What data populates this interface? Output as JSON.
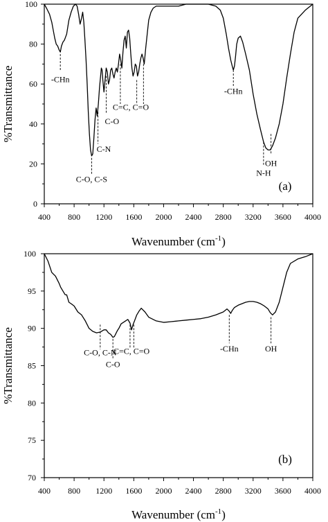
{
  "chart_data": [
    {
      "type": "line",
      "panel_label": "(a)",
      "xlabel_main": "Wavenumber (cm",
      "xlabel_sup": "-1",
      "xlabel_tail": ")",
      "ylabel": "%Transmittance",
      "xlim": [
        400,
        4000
      ],
      "ylim": [
        0,
        100
      ],
      "xticks": [
        "400",
        "800",
        "1200",
        "1600",
        "2000",
        "2400",
        "2800",
        "3200",
        "3600",
        "4000"
      ],
      "yticks": [
        "0",
        "20",
        "40",
        "60",
        "80",
        "100"
      ],
      "grid": false,
      "series": [
        {
          "x": [
            400,
            430,
            470,
            500,
            520,
            540,
            560,
            580,
            600,
            615,
            630,
            650,
            670,
            700,
            730,
            760,
            790,
            820,
            840,
            860,
            880,
            900,
            915,
            930,
            945,
            960,
            975,
            990,
            1005,
            1020,
            1035,
            1050,
            1065,
            1080,
            1095,
            1110,
            1125,
            1140,
            1155,
            1165,
            1175,
            1185,
            1200,
            1215,
            1230,
            1245,
            1260,
            1275,
            1290,
            1305,
            1320,
            1335,
            1350,
            1365,
            1380,
            1395,
            1410,
            1425,
            1440,
            1455,
            1470,
            1485,
            1500,
            1515,
            1530,
            1545,
            1560,
            1575,
            1590,
            1605,
            1620,
            1635,
            1650,
            1665,
            1680,
            1695,
            1710,
            1725,
            1740,
            1760,
            1780,
            1800,
            1830,
            1860,
            1900,
            2000,
            2100,
            2200,
            2300,
            2400,
            2500,
            2600,
            2700,
            2760,
            2800,
            2840,
            2870,
            2900,
            2920,
            2935,
            2950,
            2965,
            2980,
            3000,
            3030,
            3060,
            3100,
            3150,
            3200,
            3250,
            3300,
            3340,
            3370,
            3400,
            3430,
            3460,
            3500,
            3550,
            3600,
            3650,
            3700,
            3750,
            3800,
            3900,
            4000
          ],
          "y": [
            100,
            98,
            95,
            91,
            87,
            83,
            80,
            79,
            77,
            76,
            79,
            81,
            82,
            85,
            92,
            96,
            99,
            100,
            99,
            95,
            90,
            93,
            96,
            91,
            82,
            72,
            60,
            46,
            35,
            27,
            24,
            25,
            33,
            42,
            48,
            44,
            50,
            58,
            64,
            68,
            67,
            62,
            56,
            62,
            68,
            66,
            60,
            62,
            67,
            68,
            65,
            63,
            66,
            68,
            66,
            70,
            75,
            72,
            68,
            76,
            82,
            84,
            78,
            86,
            87,
            83,
            75,
            68,
            64,
            66,
            70,
            69,
            64,
            66,
            70,
            73,
            75,
            73,
            70,
            78,
            85,
            92,
            96,
            98,
            99,
            99,
            99,
            99,
            100,
            100,
            100,
            100,
            99,
            97,
            93,
            85,
            78,
            72,
            69,
            67,
            69,
            74,
            80,
            83,
            84,
            81,
            75,
            67,
            55,
            45,
            37,
            31,
            28,
            27,
            27,
            29,
            33,
            40,
            50,
            63,
            75,
            86,
            93,
            97,
            100
          ]
        }
      ],
      "annotations": [
        {
          "text": "-CHn",
          "x": 615,
          "y_line_top": 75,
          "y_line_bottom": 67,
          "y_text": 61,
          "anchor": "middle"
        },
        {
          "text": "C-O, C-S",
          "x": 1035,
          "y_line_top": 23,
          "y_line_bottom": 15,
          "y_text": 11,
          "anchor": "middle"
        },
        {
          "text": "C-N",
          "x": 1120,
          "y_line_top": 46,
          "y_line_bottom": 30,
          "y_text": 26,
          "anchor": "start"
        },
        {
          "text": "C-O",
          "x": 1230,
          "y_line_top": 64,
          "y_line_bottom": 45,
          "y_text": 40,
          "anchor": "start"
        },
        {
          "text": "C=C, C=O",
          "x": 1560,
          "y_line_top": 0,
          "y_line_bottom": 0,
          "y_text": 47,
          "anchor": "middle"
        },
        {
          "text": "-CHn",
          "x": 2935,
          "y_line_top": 67,
          "y_line_bottom": 59,
          "y_text": 55,
          "anchor": "middle"
        },
        {
          "text": "N-H",
          "x": 3340,
          "y_line_top": 31,
          "y_line_bottom": 19,
          "y_text": 14,
          "anchor": "middle"
        },
        {
          "text": "OH",
          "x": 3440,
          "y_line_top": 35,
          "y_line_bottom": 25,
          "y_text": 19,
          "anchor": "middle"
        }
      ]
    },
    {
      "type": "line",
      "panel_label": "(b)",
      "xlabel_main": "Wavenumber (cm",
      "xlabel_sup": "-1",
      "xlabel_tail": ")",
      "ylabel": "%Transmittance",
      "xlim": [
        400,
        4000
      ],
      "ylim": [
        70,
        100
      ],
      "xticks": [
        "400",
        "800",
        "1200",
        "1600",
        "2000",
        "2400",
        "2800",
        "3200",
        "3600",
        "4000"
      ],
      "yticks": [
        "70",
        "75",
        "80",
        "85",
        "90",
        "95",
        "100"
      ],
      "grid": false,
      "series": [
        {
          "x": [
            400,
            450,
            500,
            550,
            600,
            620,
            650,
            680,
            700,
            730,
            760,
            800,
            850,
            900,
            950,
            1000,
            1050,
            1100,
            1150,
            1200,
            1230,
            1260,
            1290,
            1320,
            1340,
            1360,
            1380,
            1400,
            1430,
            1460,
            1490,
            1520,
            1550,
            1570,
            1590,
            1610,
            1640,
            1670,
            1700,
            1750,
            1800,
            1900,
            2000,
            2100,
            2200,
            2300,
            2400,
            2500,
            2600,
            2700,
            2800,
            2850,
            2880,
            2900,
            2920,
            2950,
            3000,
            3050,
            3100,
            3150,
            3200,
            3250,
            3300,
            3350,
            3400,
            3430,
            3460,
            3500,
            3550,
            3600,
            3650,
            3700,
            3800,
            3900,
            4000
          ],
          "y": [
            100,
            99,
            97.5,
            97,
            96,
            95.5,
            95,
            94.5,
            94.5,
            93.5,
            93.3,
            93,
            92.2,
            91.8,
            91,
            90,
            89.6,
            89.4,
            89.5,
            89.8,
            89.8,
            89.4,
            89.2,
            88.8,
            88.9,
            89.3,
            89.7,
            90,
            90.6,
            90.8,
            91,
            91.2,
            90.7,
            89.8,
            90.5,
            91,
            91.8,
            92.3,
            92.7,
            92.2,
            91.5,
            91,
            90.8,
            90.9,
            91,
            91.1,
            91.2,
            91.3,
            91.5,
            91.8,
            92.2,
            92.6,
            92.3,
            92.0,
            92.4,
            92.8,
            93.1,
            93.3,
            93.5,
            93.6,
            93.6,
            93.5,
            93.3,
            93.0,
            92.6,
            92.1,
            91.8,
            92.2,
            93.5,
            95.5,
            97.5,
            98.7,
            99.3,
            99.6,
            100
          ]
        }
      ],
      "annotations": [
        {
          "text": "C-O, C-N",
          "x": 1150,
          "y_line_top": 90.5,
          "y_line_bottom": 87.2,
          "y_text": 86.4,
          "anchor": "middle"
        },
        {
          "text": "C-O",
          "x": 1320,
          "y_line_top": 88.6,
          "y_line_bottom": 86.0,
          "y_text": 84.8,
          "anchor": "middle"
        },
        {
          "text": "C=C, C=O",
          "x": 1570,
          "y_line_top": 0,
          "y_line_bottom": 0,
          "y_text": 86.6,
          "anchor": "middle"
        },
        {
          "text": "-CHn",
          "x": 2880,
          "y_line_top": 91.8,
          "y_line_bottom": 88.0,
          "y_text": 86.9,
          "anchor": "middle"
        },
        {
          "text": "OH",
          "x": 3440,
          "y_line_top": 91.5,
          "y_line_bottom": 88.0,
          "y_text": 86.9,
          "anchor": "middle"
        }
      ]
    }
  ]
}
